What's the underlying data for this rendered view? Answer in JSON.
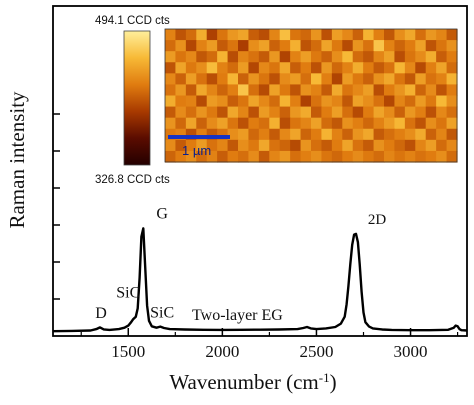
{
  "chart_data": {
    "type": "line",
    "xlabel": "Wavenumber (cm⁻¹)",
    "ylabel": "Raman intensity",
    "xlim": [
      1100,
      3300
    ],
    "ylim": [
      0,
      1
    ],
    "x_ticks": [
      "1500",
      "2000",
      "2500",
      "3000"
    ],
    "y_ticks_labeled": false,
    "grid": false,
    "series": [
      {
        "x": [
          1100,
          1200,
          1300,
          1330,
          1350,
          1370,
          1400,
          1450,
          1480,
          1500,
          1515,
          1525,
          1540,
          1550,
          1560,
          1570,
          1580,
          1590,
          1600,
          1610,
          1625,
          1650,
          1670,
          1690,
          1720,
          1800,
          1900,
          2000,
          2100,
          2200,
          2300,
          2400,
          2430,
          2450,
          2470,
          2500,
          2550,
          2600,
          2630,
          2650,
          2660,
          2670,
          2680,
          2690,
          2700,
          2710,
          2720,
          2730,
          2740,
          2750,
          2760,
          2780,
          2800,
          2850,
          2900,
          3000,
          3100,
          3200,
          3230,
          3240,
          3250,
          3260,
          3270,
          3300
        ],
        "y": [
          0.035,
          0.037,
          0.04,
          0.05,
          0.062,
          0.048,
          0.044,
          0.05,
          0.06,
          0.075,
          0.1,
          0.12,
          0.14,
          0.2,
          0.42,
          0.72,
          0.78,
          0.5,
          0.22,
          0.11,
          0.07,
          0.06,
          0.068,
          0.058,
          0.05,
          0.047,
          0.045,
          0.044,
          0.045,
          0.046,
          0.047,
          0.05,
          0.058,
          0.065,
          0.055,
          0.05,
          0.055,
          0.065,
          0.09,
          0.14,
          0.23,
          0.36,
          0.52,
          0.66,
          0.735,
          0.74,
          0.68,
          0.52,
          0.32,
          0.17,
          0.1,
          0.068,
          0.055,
          0.047,
          0.044,
          0.042,
          0.042,
          0.045,
          0.06,
          0.075,
          0.07,
          0.05,
          0.042,
          0.04
        ]
      }
    ],
    "peak_labels": [
      {
        "text": "D",
        "x": 1355
      },
      {
        "text": "SiC",
        "x": 1500
      },
      {
        "text": "G",
        "x": 1575
      },
      {
        "text": "SiC",
        "x": 1680
      },
      {
        "text": "Two-layer EG",
        "x": 2080
      },
      {
        "text": "2D",
        "x": 2720
      }
    ],
    "inset": {
      "type": "heatmap",
      "colorbar_max_label": "494.1 CCD cts",
      "colorbar_min_label": "326.8 CCD cts",
      "colorbar_colors": [
        "#240000",
        "#5a0c00",
        "#a83a00",
        "#e07c10",
        "#f7b936",
        "#ffef9c"
      ],
      "scale_bar_label": "1 µm",
      "scale_bar_color": "#1633c4",
      "rows": 12,
      "cols": 28,
      "values": [
        [
          0.62,
          0.48,
          0.55,
          0.76,
          0.42,
          0.58,
          0.69,
          0.73,
          0.51,
          0.46,
          0.63,
          0.82,
          0.58,
          0.54,
          0.68,
          0.47,
          0.71,
          0.64,
          0.52,
          0.78,
          0.61,
          0.49,
          0.66,
          0.74,
          0.56,
          0.69,
          0.63,
          0.5
        ],
        [
          0.55,
          0.67,
          0.44,
          0.62,
          0.7,
          0.5,
          0.58,
          0.41,
          0.66,
          0.72,
          0.52,
          0.6,
          0.77,
          0.48,
          0.55,
          0.73,
          0.59,
          0.45,
          0.68,
          0.57,
          0.84,
          0.62,
          0.53,
          0.6,
          0.72,
          0.48,
          0.58,
          0.67
        ],
        [
          0.7,
          0.58,
          0.64,
          0.49,
          0.55,
          0.78,
          0.46,
          0.63,
          0.57,
          0.5,
          0.69,
          0.43,
          0.62,
          0.71,
          0.59,
          0.52,
          0.66,
          0.8,
          0.55,
          0.49,
          0.63,
          0.72,
          0.46,
          0.58,
          0.65,
          0.76,
          0.51,
          0.6
        ],
        [
          0.48,
          0.73,
          0.59,
          0.66,
          0.81,
          0.62,
          0.55,
          0.7,
          0.44,
          0.64,
          0.58,
          0.74,
          0.51,
          0.6,
          0.47,
          0.69,
          0.54,
          0.62,
          0.76,
          0.6,
          0.5,
          0.57,
          0.79,
          0.64,
          0.45,
          0.61,
          0.73,
          0.55
        ],
        [
          0.64,
          0.52,
          0.71,
          0.57,
          0.46,
          0.6,
          0.79,
          0.52,
          0.68,
          0.58,
          0.47,
          0.65,
          0.7,
          0.56,
          0.8,
          0.61,
          0.43,
          0.7,
          0.59,
          0.52,
          0.67,
          0.74,
          0.58,
          0.49,
          0.71,
          0.57,
          0.62,
          0.78
        ],
        [
          0.57,
          0.69,
          0.5,
          0.74,
          0.63,
          0.53,
          0.61,
          0.84,
          0.56,
          0.45,
          0.72,
          0.59,
          0.48,
          0.67,
          0.62,
          0.5,
          0.75,
          0.58,
          0.64,
          0.71,
          0.46,
          0.6,
          0.68,
          0.77,
          0.53,
          0.65,
          0.48,
          0.6
        ],
        [
          0.76,
          0.6,
          0.62,
          0.45,
          0.7,
          0.66,
          0.51,
          0.58,
          0.73,
          0.64,
          0.55,
          0.78,
          0.61,
          0.42,
          0.57,
          0.68,
          0.63,
          0.49,
          0.72,
          0.66,
          0.57,
          0.44,
          0.63,
          0.55,
          0.7,
          0.59,
          0.8,
          0.66
        ],
        [
          0.5,
          0.65,
          0.56,
          0.68,
          0.59,
          0.48,
          0.74,
          0.63,
          0.47,
          0.7,
          0.62,
          0.52,
          0.69,
          0.75,
          0.5,
          0.6,
          0.71,
          0.56,
          0.45,
          0.6,
          0.73,
          0.65,
          0.52,
          0.69,
          0.61,
          0.47,
          0.64,
          0.56
        ],
        [
          0.68,
          0.54,
          0.73,
          0.52,
          0.65,
          0.72,
          0.58,
          0.47,
          0.6,
          0.56,
          0.77,
          0.46,
          0.58,
          0.63,
          0.72,
          0.55,
          0.49,
          0.67,
          0.61,
          0.54,
          0.62,
          0.7,
          0.79,
          0.57,
          0.48,
          0.66,
          0.58,
          0.72
        ],
        [
          0.59,
          0.62,
          0.47,
          0.61,
          0.5,
          0.57,
          0.66,
          0.7,
          0.54,
          0.61,
          0.5,
          0.64,
          0.73,
          0.53,
          0.6,
          0.78,
          0.62,
          0.52,
          0.68,
          0.74,
          0.5,
          0.56,
          0.61,
          0.66,
          0.75,
          0.52,
          0.63,
          0.49
        ],
        [
          0.65,
          0.5,
          0.6,
          0.7,
          0.57,
          0.63,
          0.49,
          0.66,
          0.59,
          0.74,
          0.57,
          0.53,
          0.45,
          0.68,
          0.56,
          0.5,
          0.6,
          0.73,
          0.57,
          0.5,
          0.67,
          0.6,
          0.54,
          0.47,
          0.63,
          0.71,
          0.55,
          0.64
        ],
        [
          0.53,
          0.6,
          0.66,
          0.55,
          0.62,
          0.51,
          0.6,
          0.56,
          0.65,
          0.5,
          0.63,
          0.69,
          0.56,
          0.61,
          0.66,
          0.58,
          0.54,
          0.6,
          0.65,
          0.59,
          0.55,
          0.63,
          0.58,
          0.62,
          0.57,
          0.6,
          0.66,
          0.55
        ]
      ]
    }
  }
}
